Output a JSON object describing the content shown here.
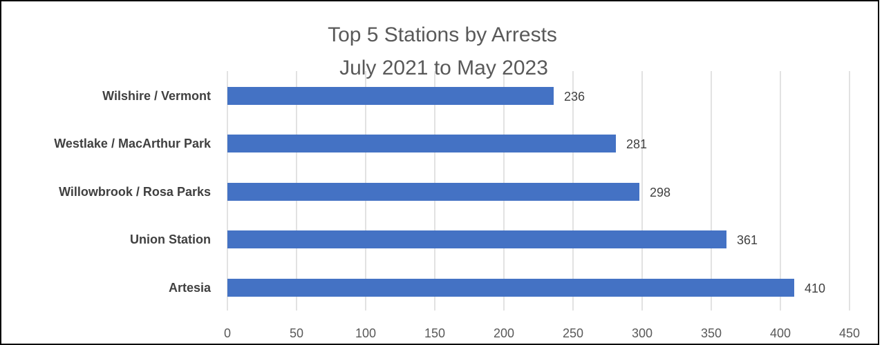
{
  "chart_data": {
    "type": "bar",
    "orientation": "horizontal",
    "title": "Top 5 Stations by Arrests",
    "subtitle": "July 2021 to May 2023",
    "categories": [
      "Wilshire / Vermont",
      "Westlake / MacArthur Park",
      "Willowbrook / Rosa Parks",
      "Union Station",
      "Artesia"
    ],
    "values": [
      236,
      281,
      298,
      361,
      410
    ],
    "data_labels": [
      "236",
      "281",
      "298",
      "361",
      "410"
    ],
    "xlim": [
      0,
      450
    ],
    "x_ticks": [
      "0",
      "50",
      "100",
      "150",
      "200",
      "250",
      "300",
      "350",
      "400",
      "450"
    ],
    "xlabel": "",
    "ylabel": "",
    "grid": "vertical",
    "legend": "none",
    "bar_color": "#4472C4",
    "grid_color": "#D9D9D9"
  }
}
